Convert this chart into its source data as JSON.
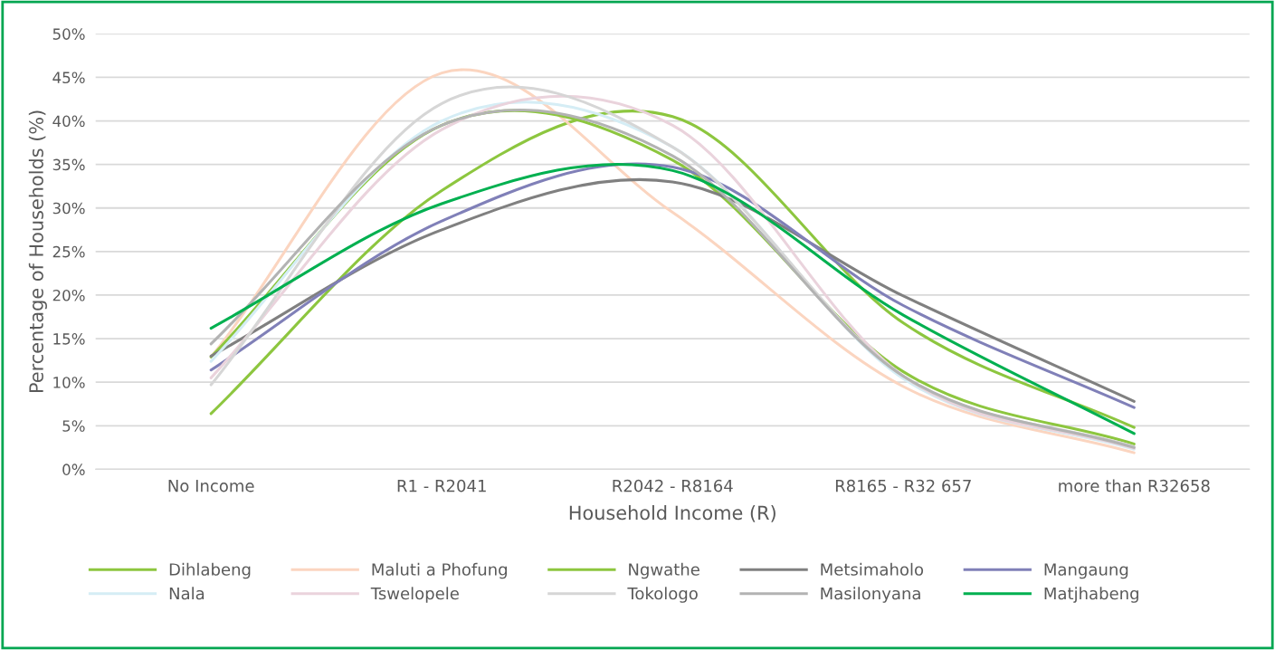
{
  "chart_data": {
    "type": "line",
    "xlabel": "Household Income (R)",
    "ylabel": "Percentage of Households (%)",
    "categories": [
      "No Income",
      "R1 - R2041",
      "R2042 - R8164",
      "R8165 - R32 657",
      "more than R32658"
    ],
    "series": [
      {
        "name": "Dihlabeng",
        "color": "#8dc63f",
        "values": [
          6.4,
          32,
          40.5,
          16.8,
          4.8
        ]
      },
      {
        "name": "Maluti a Phofung",
        "color": "#fbd5c0",
        "values": [
          12.9,
          45.5,
          29.5,
          9.5,
          1.9
        ]
      },
      {
        "name": "Ngwathe",
        "color": "#8dc63f",
        "values": [
          12.9,
          39.5,
          35.5,
          11.2,
          2.9
        ]
      },
      {
        "name": "Metsimaholo",
        "color": "#808080",
        "values": [
          13.0,
          27.5,
          33,
          19.9,
          7.8
        ]
      },
      {
        "name": "Mangaung",
        "color": "#8080b8",
        "values": [
          11.4,
          28.5,
          34.7,
          18.8,
          7.1
        ]
      },
      {
        "name": "Nala",
        "color": "#d5edf5",
        "values": [
          12.4,
          40,
          37,
          10.4,
          2.3
        ]
      },
      {
        "name": "Tswelopele",
        "color": "#ead3dc",
        "values": [
          10.5,
          39,
          39.5,
          10.7,
          2.4
        ]
      },
      {
        "name": "Tokologo",
        "color": "#d6d6d6",
        "values": [
          9.7,
          42,
          37,
          10.7,
          2.6
        ]
      },
      {
        "name": "Masilonyana",
        "color": "#b3b3b3",
        "values": [
          14.4,
          39.5,
          36,
          10.7,
          2.5
        ]
      },
      {
        "name": "Matjhabeng",
        "color": "#00b050",
        "values": [
          16.2,
          30.5,
          34.3,
          17.7,
          4.1
        ]
      }
    ],
    "ylim": [
      0,
      50
    ],
    "yticks": [
      {
        "value": 0,
        "label": "0%"
      },
      {
        "value": 5,
        "label": "5%"
      },
      {
        "value": 10,
        "label": "10%"
      },
      {
        "value": 15,
        "label": "15%"
      },
      {
        "value": 20,
        "label": "20%"
      },
      {
        "value": 25,
        "label": "25%"
      },
      {
        "value": 30,
        "label": "30%"
      },
      {
        "value": 35,
        "label": "35%"
      },
      {
        "value": 40,
        "label": "40%"
      },
      {
        "value": 45,
        "label": "45%"
      },
      {
        "value": 50,
        "label": "50%"
      }
    ],
    "grid": "y",
    "legend": "bottom",
    "marker": "none",
    "line_style": "solid"
  }
}
